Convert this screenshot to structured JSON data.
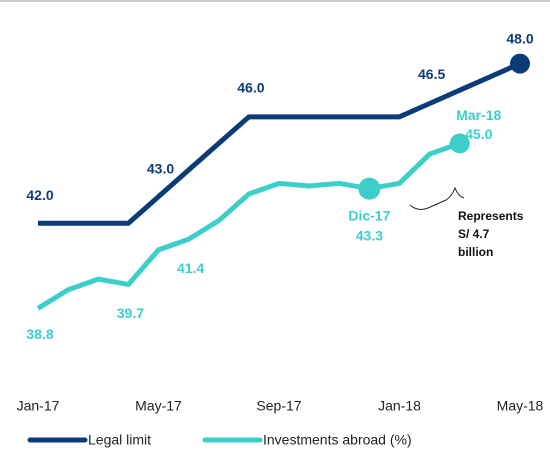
{
  "chart_data": {
    "type": "line",
    "categories": [
      "Jan-17",
      null,
      null,
      null,
      "May-17",
      null,
      null,
      null,
      "Sep-17",
      null,
      null,
      null,
      "Jan-18",
      null,
      null,
      null,
      "May-18"
    ],
    "ylim": [
      37.5,
      49
    ],
    "series": [
      {
        "name": "Legal limit",
        "color": "#0c3c78",
        "values": [
          42,
          42,
          42,
          42,
          43,
          44,
          45,
          46,
          46,
          46,
          46,
          46,
          46,
          46.5,
          47,
          47.5,
          48
        ],
        "value_labels": [
          "42.0",
          null,
          null,
          null,
          "43.0",
          null,
          null,
          "46.0",
          null,
          null,
          null,
          null,
          null,
          "46.5",
          null,
          null,
          "48.0"
        ]
      },
      {
        "name": "Investments abroad (%)",
        "color": "#3ccfca",
        "values": [
          38.8,
          39.5,
          39.9,
          39.7,
          41.0,
          41.4,
          42.1,
          43.1,
          43.5,
          43.4,
          43.5,
          43.3,
          43.5,
          44.6,
          45.0,
          null,
          null
        ],
        "value_labels": [
          "38.8",
          null,
          null,
          "39.7",
          null,
          "41.4",
          null,
          null,
          null,
          null,
          null,
          "43.3",
          null,
          null,
          "45.0",
          null,
          null
        ]
      }
    ],
    "annotations": [
      "Dic-17",
      "Mar-18"
    ],
    "note": [
      "Represents",
      "S/ 4.7",
      "billion"
    ]
  }
}
